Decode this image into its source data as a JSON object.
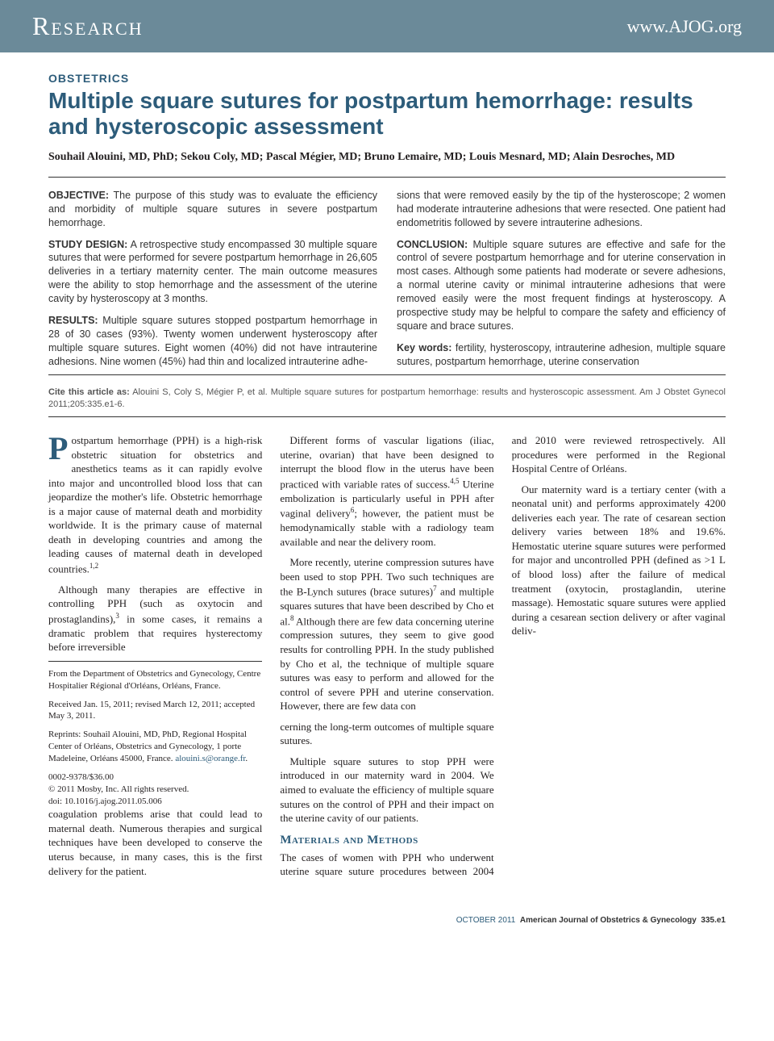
{
  "header": {
    "left": "Research",
    "right": "www.AJOG.org"
  },
  "category": "OBSTETRICS",
  "title": "Multiple square sutures for postpartum hemorrhage: results and hysteroscopic assessment",
  "authors": "Souhail Alouini, MD, PhD; Sekou Coly, MD; Pascal Mégier, MD; Bruno Lemaire, MD; Louis Mesnard, MD; Alain Desroches, MD",
  "abstract": {
    "objective": {
      "label": "OBJECTIVE:",
      "text": "The purpose of this study was to evaluate the efficiency and morbidity of multiple square sutures in severe postpartum hemorrhage."
    },
    "design": {
      "label": "STUDY DESIGN:",
      "text": "A retrospective study encompassed 30 multiple square sutures that were performed for severe postpartum hemorrhage in 26,605 deliveries in a tertiary maternity center. The main outcome measures were the ability to stop hemorrhage and the assessment of the uterine cavity by hysteroscopy at 3 months."
    },
    "results": {
      "label": "RESULTS:",
      "text_left": "Multiple square sutures stopped postpartum hemorrhage in 28 of 30 cases (93%). Twenty women underwent hysteroscopy after multiple square sutures. Eight women (40%) did not have intrauterine adhesions. Nine women (45%) had thin and localized intrauterine adhe-",
      "text_right": "sions that were removed easily by the tip of the hysteroscope; 2 women had moderate intrauterine adhesions that were resected. One patient had endometritis followed by severe intrauterine adhesions."
    },
    "conclusion": {
      "label": "CONCLUSION:",
      "text": "Multiple square sutures are effective and safe for the control of severe postpartum hemorrhage and for uterine conservation in most cases. Although some patients had moderate or severe adhesions, a normal uterine cavity or minimal intrauterine adhesions that were removed easily were the most frequent findings at hysteroscopy. A prospective study may be helpful to compare the safety and efficiency of square and brace sutures."
    },
    "keywords": {
      "label": "Key words:",
      "text": "fertility, hysteroscopy, intrauterine adhesion, multiple square sutures, postpartum hemorrhage, uterine conservation"
    }
  },
  "citation": {
    "label": "Cite this article as:",
    "text": "Alouini S, Coly S, Mégier P, et al. Multiple square sutures for postpartum hemorrhage: results and hysteroscopic assessment. Am J Obstet Gynecol 2011;205:335.e1-6."
  },
  "body": {
    "p1_first": "P",
    "p1": "ostpartum hemorrhage (PPH) is a high-risk obstetric situation for obstetrics and anesthetics teams as it can rapidly evolve into major and uncontrolled blood loss that can jeopardize the mother's life. Obstetric hemorrhage is a major cause of maternal death and morbidity worldwide. It is the primary cause of maternal death in developing countries and among the leading causes of maternal death in developed countries.",
    "p1_ref": "1,2",
    "p2a": "Although many therapies are effective in controlling PPH (such as oxytocin and prostaglandins),",
    "p2_ref": "3",
    "p2b": " in some cases, it remains a dramatic problem that requires hysterectomy before irreversible",
    "p3": "coagulation problems arise that could lead to maternal death. Numerous therapies and surgical techniques have been developed to conserve the uterus because, in many cases, this is the first delivery for the patient.",
    "p4a": "Different forms of vascular ligations (iliac, uterine, ovarian) that have been designed to interrupt the blood flow in the uterus have been practiced with variable rates of success.",
    "p4_ref1": "4,5",
    "p4b": " Uterine embolization is particularly useful in PPH after vaginal delivery",
    "p4_ref2": "6",
    "p4c": "; however, the patient must be hemodynamically stable with a radiology team available and near the delivery room.",
    "p5a": "More recently, uterine compression sutures have been used to stop PPH. Two such techniques are the B-Lynch sutures (brace sutures)",
    "p5_ref1": "7",
    "p5b": " and multiple squares sutures that have been described by Cho et al.",
    "p5_ref2": "8",
    "p5c": " Although there are few data concerning uterine compression sutures, they seem to give good results for controlling PPH. In the study published by Cho et al, the technique of multiple square sutures was easy to perform and allowed for the control of severe PPH and uterine conservation. However, there are few data con",
    "p6": "cerning the long-term outcomes of multiple square sutures.",
    "p7": "Multiple square sutures to stop PPH were introduced in our maternity ward in 2004. We aimed to evaluate the efficiency of multiple square sutures on the control of PPH and their impact on the uterine cavity of our patients.",
    "methods_heading": "Materials and Methods",
    "m1": "The cases of women with PPH who underwent uterine square suture procedures between 2004 and 2010 were reviewed retrospectively. All procedures were performed in the Regional Hospital Centre of Orléans.",
    "m2": "Our maternity ward is a tertiary center (with a neonatal unit) and performs approximately 4200 deliveries each year. The rate of cesarean section delivery varies between 18% and 19.6%. Hemostatic uterine square sutures were performed for major and uncontrolled PPH (defined as >1 L of blood loss) after the failure of medical treatment (oxytocin, prostaglandin, uterine massage). Hemostatic square sutures were applied during a cesarean section delivery or after vaginal deliv-"
  },
  "affiliation": {
    "from": "From the Department of Obstetrics and Gynecology, Centre Hospitalier Régional d'Orléans, Orléans, France.",
    "dates": "Received Jan. 15, 2011; revised March 12, 2011; accepted May 3, 2011.",
    "reprints": "Reprints: Souhail Alouini, MD, PhD, Regional Hospital Center of Orléans, Obstetrics and Gynecology, 1 porte Madeleine, Orléans 45000, France. ",
    "email": "alouini.s@orange.fr",
    "issn": "0002-9378/$36.00",
    "copyright": "© 2011 Mosby, Inc. All rights reserved.",
    "doi": "doi: 10.1016/j.ajog.2011.05.006"
  },
  "footer": {
    "month": "OCTOBER 2011",
    "journal": "American Journal of Obstetrics & Gynecology",
    "page": "335.e1"
  }
}
